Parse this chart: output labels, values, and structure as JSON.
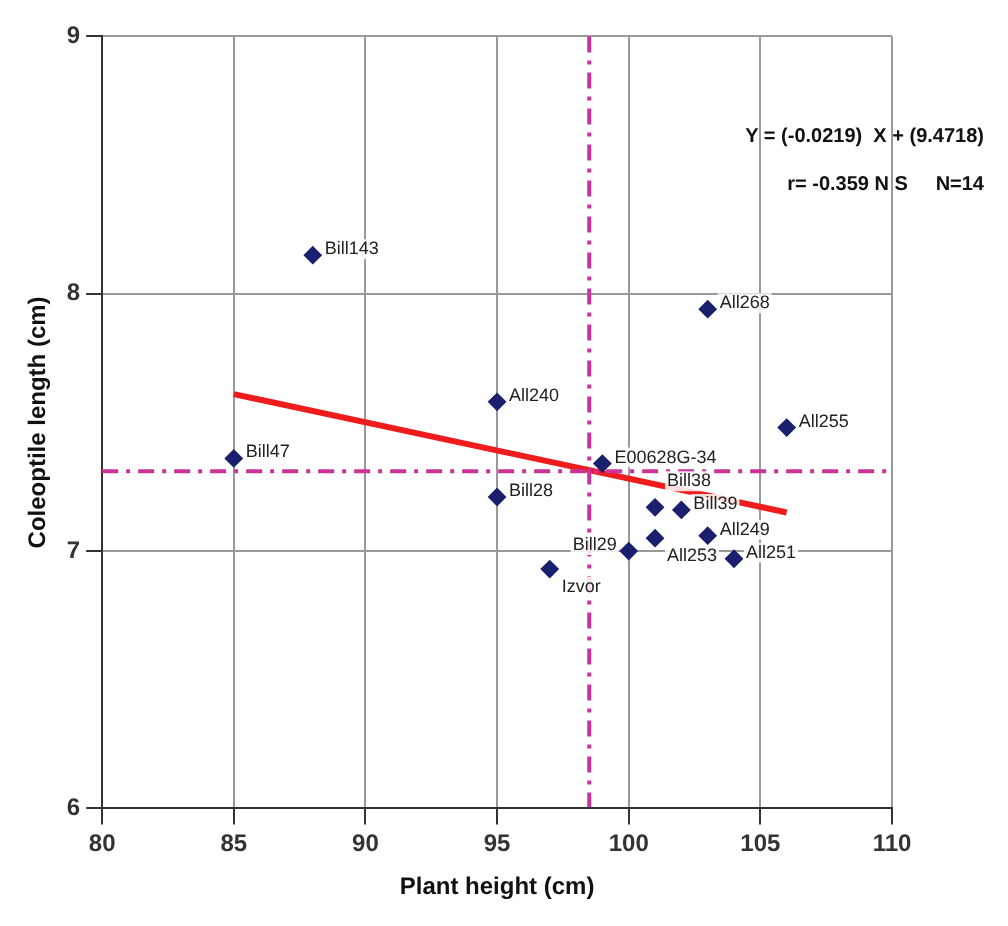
{
  "chart_data": {
    "type": "scatter",
    "xlabel": "Plant height (cm)",
    "ylabel": "Coleoptile length (cm)",
    "xlim": [
      80,
      110
    ],
    "xticks": [
      80,
      85,
      90,
      95,
      100,
      105,
      110
    ],
    "ylim": [
      6,
      9
    ],
    "yticks": [
      6,
      7,
      8,
      9
    ],
    "grid": true,
    "marker": "diamond",
    "legend": false,
    "series": [
      {
        "color": "#1a1f6e",
        "x": [
          88,
          103,
          95,
          106,
          85,
          99,
          95,
          101,
          102,
          103,
          101,
          100,
          104,
          97
        ],
        "values": [
          8.15,
          7.94,
          7.58,
          7.48,
          7.36,
          7.34,
          7.21,
          7.17,
          7.16,
          7.06,
          7.05,
          7.0,
          6.97,
          6.93
        ]
      },
      {
        "type": "line",
        "color": "#ee1c1c",
        "x": [
          85,
          106
        ],
        "values": [
          7.61,
          7.15
        ],
        "marker": "none"
      }
    ],
    "ref_lines": [
      {
        "axis": "x",
        "value": 98.5,
        "color": "#cc3399",
        "line_style": "dashed"
      },
      {
        "axis": "y",
        "value": 7.31,
        "color": "#cc3399",
        "line_style": "dashed"
      }
    ],
    "annotations": [
      "Y = (-0.0219)  X + (9.4718)",
      "r= -0.359 N S     N=14",
      {
        "text": "Bill143",
        "x": 88,
        "y": 8.15
      },
      {
        "text": "All268",
        "x": 103,
        "y": 7.94
      },
      {
        "text": "All240",
        "x": 95,
        "y": 7.58
      },
      {
        "text": "All255",
        "x": 106,
        "y": 7.48
      },
      {
        "text": "Bill47",
        "x": 85,
        "y": 7.36
      },
      {
        "text": "E00628G-34",
        "x": 99,
        "y": 7.34
      },
      {
        "text": "Bill28",
        "x": 95,
        "y": 7.21
      },
      {
        "text": "Bill38",
        "x": 101,
        "y": 7.17
      },
      {
        "text": "Bill39",
        "x": 102,
        "y": 7.16
      },
      {
        "text": "All249",
        "x": 103,
        "y": 7.06
      },
      {
        "text": "All253",
        "x": 101,
        "y": 7.05
      },
      {
        "text": "Bill29",
        "x": 100,
        "y": 7.0
      },
      {
        "text": "All251",
        "x": 104,
        "y": 6.97
      },
      {
        "text": "Izvor",
        "x": 97,
        "y": 6.93
      }
    ]
  }
}
